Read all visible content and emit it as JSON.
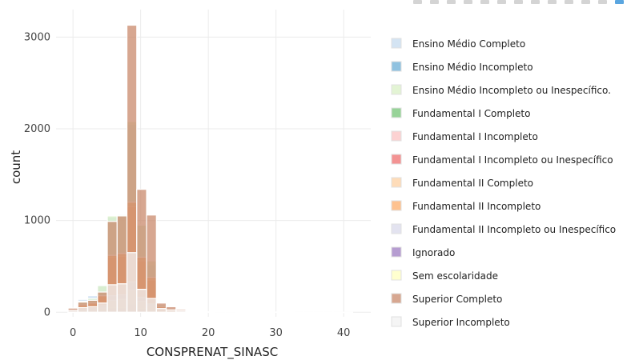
{
  "chart_data": {
    "type": "bar",
    "barmode": "overlay",
    "title": "",
    "xlabel": "CONSPRENAT_SINASC",
    "ylabel": "count",
    "xlim": [
      -2.5,
      44
    ],
    "ylim": [
      -50,
      3300
    ],
    "xticks": [
      0,
      10,
      20,
      30,
      40
    ],
    "yticks": [
      0,
      1000,
      2000,
      3000
    ],
    "grid": true,
    "legend_position": "right",
    "bin_width": 1.45,
    "series": [
      {
        "name": "Ensino Médio Completo",
        "color": "#c6dbef",
        "x": [
          0,
          1.45,
          2.9,
          4.35,
          5.8,
          7.25,
          8.7,
          10.15,
          11.6,
          13.05,
          14.5,
          15.95,
          17.4,
          18.85,
          20.3
        ],
        "values": [
          40,
          140,
          180,
          300,
          1040,
          1070,
          2050,
          960,
          520,
          90,
          50,
          20,
          8,
          4,
          2
        ]
      },
      {
        "name": "Ensino Médio Incompleto",
        "color": "#6baed6",
        "x": [
          0,
          1.45,
          2.9,
          4.35,
          5.8,
          7.25,
          8.7,
          10.15,
          11.6,
          13.05,
          14.5
        ],
        "values": [
          10,
          30,
          40,
          80,
          240,
          250,
          380,
          170,
          90,
          15,
          8
        ]
      },
      {
        "name": "Ensino Médio Incompleto ou Inespecífico.",
        "color": "#d9f0c6",
        "x": [
          0,
          1.45,
          2.9,
          4.35,
          5.8,
          7.25,
          8.7,
          10.15,
          11.6,
          13.05,
          14.5,
          15.95
        ],
        "values": [
          30,
          120,
          150,
          290,
          1050,
          1060,
          2080,
          950,
          560,
          80,
          40,
          12
        ]
      },
      {
        "name": "Fundamental I Completo",
        "color": "#74c476",
        "x": [
          0,
          1.45,
          2.9,
          4.35,
          5.8,
          7.25,
          8.7,
          10.15,
          11.6
        ],
        "values": [
          5,
          15,
          20,
          40,
          90,
          100,
          160,
          70,
          40
        ]
      },
      {
        "name": "Fundamental I Incompleto",
        "color": "#fbc3c3",
        "x": [
          0,
          1.45,
          2.9,
          4.35,
          5.8,
          7.25,
          8.7,
          10.15,
          11.6,
          13.05,
          14.5
        ],
        "values": [
          20,
          60,
          80,
          150,
          380,
          390,
          690,
          360,
          210,
          40,
          20
        ]
      },
      {
        "name": "Fundamental I Incompleto ou Inespecífico",
        "color": "#ef6f6f",
        "x": [
          0,
          1.45,
          2.9,
          4.35,
          5.8,
          7.25,
          8.7,
          10.15,
          11.6,
          13.05
        ],
        "values": [
          15,
          40,
          60,
          110,
          280,
          290,
          510,
          270,
          150,
          25
        ]
      },
      {
        "name": "Fundamental II Completo",
        "color": "#fdd0a2",
        "x": [
          0,
          1.45,
          2.9,
          4.35,
          5.8,
          7.25,
          8.7,
          10.15,
          11.6,
          13.05,
          14.5
        ],
        "values": [
          20,
          70,
          90,
          170,
          600,
          610,
          1150,
          560,
          350,
          50,
          25
        ]
      },
      {
        "name": "Fundamental II Incompleto",
        "color": "#fdae6b",
        "x": [
          0,
          1.45,
          2.9,
          4.35,
          5.8,
          7.25,
          8.7,
          10.15,
          11.6,
          13.05,
          14.5
        ],
        "values": [
          25,
          80,
          100,
          180,
          620,
          640,
          1200,
          600,
          380,
          60,
          30
        ]
      },
      {
        "name": "Fundamental II Incompleto ou Inespecífico",
        "color": "#dadaeb",
        "x": [
          0,
          1.45,
          2.9,
          4.35,
          5.8,
          7.25,
          8.7,
          10.15,
          11.6
        ],
        "values": [
          10,
          30,
          40,
          70,
          180,
          190,
          330,
          160,
          90
        ]
      },
      {
        "name": "Ignorado",
        "color": "#9e7cc1",
        "x": [
          0,
          1.45,
          2.9,
          4.35,
          5.8,
          7.25,
          8.7,
          10.15
        ],
        "values": [
          3,
          8,
          10,
          20,
          50,
          50,
          90,
          40
        ]
      },
      {
        "name": "Sem escolaridade",
        "color": "#ffffbf",
        "x": [
          0,
          1.45,
          2.9,
          4.35,
          5.8,
          7.25,
          8.7,
          10.15,
          11.6
        ],
        "values": [
          5,
          20,
          25,
          45,
          130,
          140,
          240,
          120,
          70
        ]
      },
      {
        "name": "Superior Completo",
        "color": "#c98a6c",
        "x": [
          0,
          1.45,
          2.9,
          4.35,
          5.8,
          7.25,
          8.7,
          10.15,
          11.6,
          13.05,
          14.5,
          15.95,
          17.4
        ],
        "values": [
          45,
          110,
          130,
          220,
          990,
          1050,
          3130,
          1340,
          1060,
          100,
          60,
          30,
          10
        ]
      },
      {
        "name": "Superior Incompleto",
        "color": "#f2f2f2",
        "x": [
          0,
          1.45,
          2.9,
          4.35,
          5.8,
          7.25,
          8.7,
          10.15,
          11.6,
          13.05,
          14.5,
          15.95,
          17.4,
          18.85,
          20.3,
          21.75,
          23.2,
          24.65,
          26.1,
          27.55,
          29,
          30.45,
          31.9,
          33.35,
          34.8,
          36.25,
          37.7,
          39.15,
          40.6
        ],
        "values": [
          20,
          50,
          60,
          100,
          300,
          310,
          650,
          250,
          150,
          40,
          25,
          15,
          10,
          8,
          6,
          5,
          4,
          3,
          3,
          2,
          2,
          2,
          2,
          1,
          1,
          1,
          1,
          1,
          1
        ]
      }
    ]
  }
}
